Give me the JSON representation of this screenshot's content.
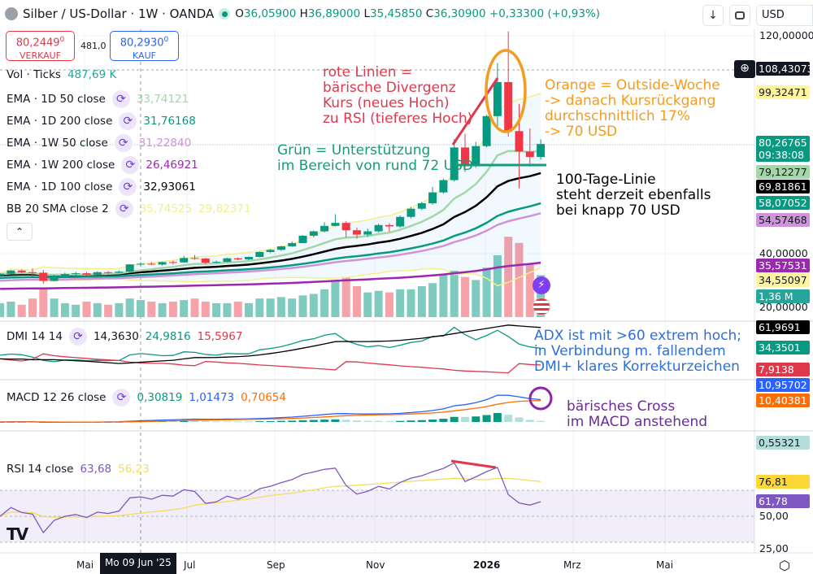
{
  "header": {
    "symbol": "Silber / US-Dollar · 1W · OANDA",
    "ohlc": {
      "o_label": "O",
      "o": "36,05900",
      "h_label": "H",
      "h": "36,89000",
      "l_label": "L",
      "l": "35,45850",
      "c_label": "C",
      "c": "36,30900",
      "change": "+0,33300 (+0,93%)"
    },
    "currency": "USD",
    "sell": {
      "price": "80,2449",
      "sup": "0",
      "label": "VERKAUF"
    },
    "spread": "481,0",
    "buy": {
      "price": "80,2930",
      "sup": "0",
      "label": "KAUF"
    }
  },
  "legend": {
    "vol": {
      "label": "Vol · Ticks",
      "value": "487,69 K"
    },
    "items": [
      {
        "label": "EMA · 1D 50 close",
        "values": [
          "33,74121"
        ],
        "colors": [
          "#a5d6a7"
        ]
      },
      {
        "label": "EMA · 1D 200 close",
        "values": [
          "31,76168"
        ],
        "colors": [
          "#089981"
        ]
      },
      {
        "label": "EMA · 1W 50 close",
        "values": [
          "31,22840"
        ],
        "colors": [
          "#ce93d8"
        ]
      },
      {
        "label": "EMA · 1W 200 close",
        "values": [
          "26,46921"
        ],
        "colors": [
          "#9c27b0"
        ]
      },
      {
        "label": "EMA · 1D 100 close",
        "values": [
          "32,93061"
        ],
        "colors": [
          "#000000"
        ]
      },
      {
        "label": "BB 20 SMA close 2",
        "values": [
          "35,74525",
          "29,82371"
        ],
        "colors": [
          "#f3ef8a",
          "#f3ef8a"
        ]
      }
    ],
    "dmi": {
      "label": "DMI 14 14",
      "values": [
        "14,3630",
        "24,9816",
        "15,5967"
      ],
      "colors": [
        "#131722",
        "#089981",
        "#e0384b"
      ]
    },
    "macd": {
      "label": "MACD 12 26 close",
      "values": [
        "0,30819",
        "1,01473",
        "0,70654"
      ],
      "colors": [
        "#089981",
        "#2962ff",
        "#ff6d00"
      ]
    },
    "rsi": {
      "label": "RSI 14 close",
      "values": [
        "63,68",
        "56,23"
      ],
      "colors": [
        "#7e57c2",
        "#f7dc5a"
      ]
    }
  },
  "price_axis": {
    "ticks": [
      "120,00000",
      "40,00000",
      "20,00000"
    ],
    "labels": [
      {
        "text": "108,43073",
        "bg": "#131722",
        "fg": "#ffffff"
      },
      {
        "text": "99,32471",
        "bg": "#fff59d",
        "fg": "#131722"
      },
      {
        "text": "80,26765",
        "sub": "09:38:08",
        "bg": "#089981",
        "fg": "#ffffff"
      },
      {
        "text": "79,12277",
        "bg": "#a5d6a7",
        "fg": "#131722"
      },
      {
        "text": "69,81861",
        "bg": "#000000",
        "fg": "#ffffff"
      },
      {
        "text": "58,07052",
        "bg": "#089981",
        "fg": "#ffffff"
      },
      {
        "text": "54,57468",
        "bg": "#ce93d8",
        "fg": "#131722"
      },
      {
        "text": "35,57531",
        "bg": "#9c27b0",
        "fg": "#ffffff"
      },
      {
        "text": "34,55097",
        "bg": "#fff59d",
        "fg": "#131722"
      },
      {
        "text": "1,36 M",
        "bg": "#26a69a",
        "fg": "#ffffff"
      }
    ],
    "dmi_labels": [
      {
        "text": "61,9691",
        "bg": "#000000",
        "fg": "#ffffff"
      },
      {
        "text": "34,3501",
        "bg": "#089981",
        "fg": "#ffffff"
      },
      {
        "text": "7,9138",
        "bg": "#e0384b",
        "fg": "#ffffff"
      }
    ],
    "macd_labels": [
      {
        "text": "10,95702",
        "bg": "#2962ff",
        "fg": "#ffffff"
      },
      {
        "text": "10,40381",
        "bg": "#ff6d00",
        "fg": "#ffffff"
      },
      {
        "text": "0,55321",
        "bg": "#b2dfdb",
        "fg": "#131722"
      }
    ],
    "rsi_labels": [
      {
        "text": "76,81",
        "bg": "#fdd835",
        "fg": "#131722"
      },
      {
        "text": "61,78",
        "bg": "#7e57c2",
        "fg": "#ffffff"
      }
    ],
    "rsi_ticks": [
      "50,00",
      "25,00"
    ]
  },
  "time_axis": {
    "ticks": [
      "Mai",
      "Jul",
      "Sep",
      "Nov",
      "2026",
      "Mrz",
      "Mai"
    ],
    "cursor": "Mo 09 Jun '25"
  },
  "annotations": {
    "red": [
      "rote Linien =",
      "bärische Divergenz",
      "Kurs (neues Hoch)",
      "zu RSI (tieferes Hoch)"
    ],
    "orange": [
      "Orange = Outside-Woche",
      "-> danach Kursrückgang",
      "durchschnittlich 17%",
      "-> 70 USD"
    ],
    "green": [
      "Grün = Unterstützung",
      "im Bereich von rund 72 USD"
    ],
    "black": [
      "100-Tage-Linie",
      "steht derzeit ebenfalls",
      "bei knapp 70 USD"
    ],
    "blue": [
      "ADX ist mit >60 extrem hoch;",
      "in Verbindung m. fallendem",
      "DMI+ klares Korrekturzeichen"
    ],
    "purple": [
      "bärisches Cross",
      "im MACD anstehend"
    ]
  },
  "colors": {
    "up": "#089981",
    "down": "#f23645",
    "vol_up": "#7fcbbf",
    "vol_down": "#f7a1a8",
    "ema1d50": "#a5d6a7",
    "ema1d200": "#089981",
    "ema1w50": "#ce93d8",
    "ema1w200": "#9c27b0",
    "ema1d100": "#000000",
    "bb": "#f3ef8a",
    "rsi": "#7e57c2",
    "rsi_ma": "#f7dc5a",
    "macd": "#2962ff",
    "signal": "#ff6d00"
  },
  "chart_data": {
    "type": "candlestick",
    "title": "Silber / US-Dollar · 1W · OANDA",
    "ylim": [
      20,
      120
    ],
    "columns": [
      "week",
      "open",
      "high",
      "low",
      "close",
      "volume_M"
    ],
    "candles": [
      [
        "2025-03-10",
        32.0,
        33.0,
        31.5,
        32.6,
        0.45
      ],
      [
        "2025-03-17",
        32.6,
        34.0,
        32.4,
        33.8,
        0.5
      ],
      [
        "2025-03-24",
        33.8,
        34.2,
        32.8,
        33.2,
        0.4
      ],
      [
        "2025-03-31",
        33.2,
        34.6,
        31.8,
        33.0,
        0.6
      ],
      [
        "2025-04-07",
        33.0,
        34.0,
        29.0,
        30.0,
        0.9
      ],
      [
        "2025-04-14",
        30.0,
        32.2,
        29.8,
        31.8,
        0.6
      ],
      [
        "2025-04-21",
        31.8,
        33.0,
        31.5,
        32.5,
        0.45
      ],
      [
        "2025-04-28",
        32.5,
        33.3,
        32.0,
        32.8,
        0.4
      ],
      [
        "2025-05-05",
        32.8,
        33.2,
        32.0,
        32.3,
        0.5
      ],
      [
        "2025-05-12",
        32.3,
        33.5,
        32.2,
        33.2,
        0.45
      ],
      [
        "2025-05-19",
        33.2,
        33.6,
        32.6,
        33.0,
        0.4
      ],
      [
        "2025-05-26",
        33.0,
        33.8,
        32.8,
        33.4,
        0.45
      ],
      [
        "2025-06-02",
        33.4,
        36.1,
        33.2,
        36.06,
        0.6
      ],
      [
        "2025-06-09",
        36.059,
        36.89,
        35.4585,
        36.309,
        0.55
      ],
      [
        "2025-06-16",
        36.3,
        36.9,
        35.8,
        36.0,
        0.5
      ],
      [
        "2025-06-23",
        36.0,
        37.0,
        35.6,
        36.9,
        0.45
      ],
      [
        "2025-06-30",
        36.9,
        37.4,
        36.0,
        36.8,
        0.5
      ],
      [
        "2025-07-07",
        36.8,
        39.2,
        36.6,
        38.4,
        0.55
      ],
      [
        "2025-07-14",
        38.4,
        39.5,
        37.8,
        38.2,
        0.6
      ],
      [
        "2025-07-21",
        38.2,
        38.4,
        36.2,
        36.7,
        0.5
      ],
      [
        "2025-07-28",
        36.7,
        37.5,
        36.5,
        37.0,
        0.45
      ],
      [
        "2025-08-04",
        37.0,
        38.5,
        36.8,
        38.3,
        0.45
      ],
      [
        "2025-08-11",
        38.3,
        38.6,
        37.6,
        37.9,
        0.5
      ],
      [
        "2025-08-18",
        37.9,
        39.0,
        37.6,
        38.8,
        0.45
      ],
      [
        "2025-08-25",
        38.8,
        40.8,
        38.6,
        40.6,
        0.6
      ],
      [
        "2025-09-01",
        40.6,
        41.7,
        40.2,
        41.4,
        0.6
      ],
      [
        "2025-09-08",
        41.4,
        42.9,
        41.0,
        42.7,
        0.65
      ],
      [
        "2025-09-15",
        42.7,
        44.5,
        42.5,
        43.9,
        0.6
      ],
      [
        "2025-09-22",
        43.9,
        46.8,
        43.8,
        46.6,
        0.7
      ],
      [
        "2025-09-29",
        46.6,
        48.5,
        46.0,
        48.2,
        0.75
      ],
      [
        "2025-10-06",
        48.2,
        51.5,
        47.8,
        50.2,
        0.9
      ],
      [
        "2025-10-13",
        50.2,
        54.5,
        50.0,
        51.3,
        1.2
      ],
      [
        "2025-10-20",
        51.3,
        52.0,
        46.0,
        48.6,
        1.3
      ],
      [
        "2025-10-27",
        48.6,
        49.5,
        45.5,
        47.0,
        1.0
      ],
      [
        "2025-11-03",
        47.0,
        49.2,
        46.2,
        48.2,
        0.8
      ],
      [
        "2025-11-10",
        48.2,
        51.0,
        47.8,
        50.5,
        0.85
      ],
      [
        "2025-11-17",
        50.5,
        51.2,
        48.0,
        50.0,
        0.8
      ],
      [
        "2025-11-24",
        50.0,
        54.0,
        49.5,
        53.5,
        0.9
      ],
      [
        "2025-12-01",
        53.5,
        57.0,
        53.0,
        56.5,
        0.9
      ],
      [
        "2025-12-08",
        56.5,
        59.0,
        56.0,
        58.5,
        1.0
      ],
      [
        "2025-12-15",
        58.5,
        64.5,
        58.0,
        62.5,
        1.1
      ],
      [
        "2025-12-22",
        62.5,
        67.5,
        62.0,
        67.0,
        1.4
      ],
      [
        "2025-12-29",
        67.0,
        82.0,
        66.5,
        79.0,
        1.5
      ],
      [
        "2026-01-05",
        79.0,
        84.0,
        70.0,
        72.5,
        1.3
      ],
      [
        "2026-01-12",
        72.5,
        81.0,
        71.5,
        79.5,
        1.2
      ],
      [
        "2026-01-19",
        79.5,
        91.0,
        79.0,
        90.5,
        1.6
      ],
      [
        "2026-01-26",
        90.5,
        110.0,
        86.0,
        103.0,
        2.0
      ],
      [
        "2026-02-02",
        103.0,
        121.6,
        83.0,
        85.0,
        2.6
      ],
      [
        "2026-02-09",
        85.0,
        95.0,
        64.0,
        77.5,
        2.4
      ],
      [
        "2026-02-16",
        77.5,
        86.0,
        72.0,
        75.5,
        1.7
      ],
      [
        "2026-02-23",
        75.5,
        82.0,
        74.5,
        80.27,
        1.36
      ]
    ]
  }
}
